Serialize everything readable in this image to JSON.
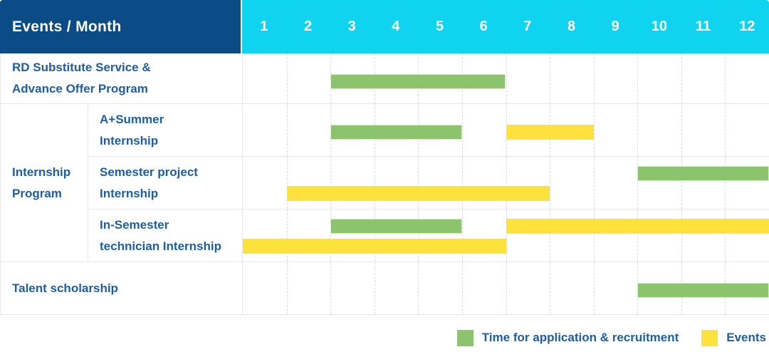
{
  "colors": {
    "header_navy": "#0b4c86",
    "header_cyan": "#10d4ef",
    "bar_green": "#8bc46d",
    "bar_yellow": "#fde23d",
    "label_blue": "#1d5da6",
    "grid_line": "#e5e7e9"
  },
  "table": {
    "corner_label": "Events / Month"
  },
  "chart_data": {
    "type": "gantt",
    "title": "",
    "x_axis_header": "Events / Month",
    "months": [
      "1",
      "2",
      "3",
      "4",
      "5",
      "6",
      "7",
      "8",
      "9",
      "10",
      "11",
      "12"
    ],
    "x_range": [
      1,
      12
    ],
    "grid": "dashed-vertical-month-lines",
    "legend_position": "bottom-right",
    "legend": [
      {
        "name": "Time for application & recruitment",
        "color": "#8bc46d",
        "key": "application"
      },
      {
        "name": "Events",
        "color": "#fde23d",
        "key": "events"
      }
    ],
    "group_label_lines": {
      "Internship Program": [
        "Internship",
        "Program"
      ]
    },
    "rows": [
      {
        "group": null,
        "label_lines": [
          "RD Substitute Service &",
          "Advance Offer Program"
        ],
        "bars": [
          {
            "series": "Time for application & recruitment",
            "start_month": 3,
            "end_month": 6,
            "lane": "single"
          }
        ]
      },
      {
        "group": "Internship Program",
        "label_lines": [
          "A+Summer",
          "Internship"
        ],
        "bars": [
          {
            "series": "Time for application & recruitment",
            "start_month": 3,
            "end_month": 5,
            "lane": "single"
          },
          {
            "series": "Events",
            "start_month": 7,
            "end_month": 8,
            "lane": "single"
          }
        ]
      },
      {
        "group": "Internship Program",
        "label_lines": [
          "Semester project",
          "Internship"
        ],
        "bars": [
          {
            "series": "Time for application & recruitment",
            "start_month": 10,
            "end_month": 12,
            "lane": "top"
          },
          {
            "series": "Events",
            "start_month": 2,
            "end_month": 7,
            "lane": "bottom"
          }
        ]
      },
      {
        "group": "Internship Program",
        "label_lines": [
          "In-Semester",
          "technician Internship"
        ],
        "bars": [
          {
            "series": "Time for application & recruitment",
            "start_month": 3,
            "end_month": 5,
            "lane": "top"
          },
          {
            "series": "Events",
            "start_month": 7,
            "end_month": 12,
            "lane": "top"
          },
          {
            "series": "Events",
            "start_month": 1,
            "end_month": 6,
            "lane": "bottom"
          }
        ]
      },
      {
        "group": null,
        "label_lines": [
          "Talent scholarship"
        ],
        "bars": [
          {
            "series": "Time for application & recruitment",
            "start_month": 10,
            "end_month": 12,
            "lane": "single"
          }
        ]
      }
    ]
  }
}
